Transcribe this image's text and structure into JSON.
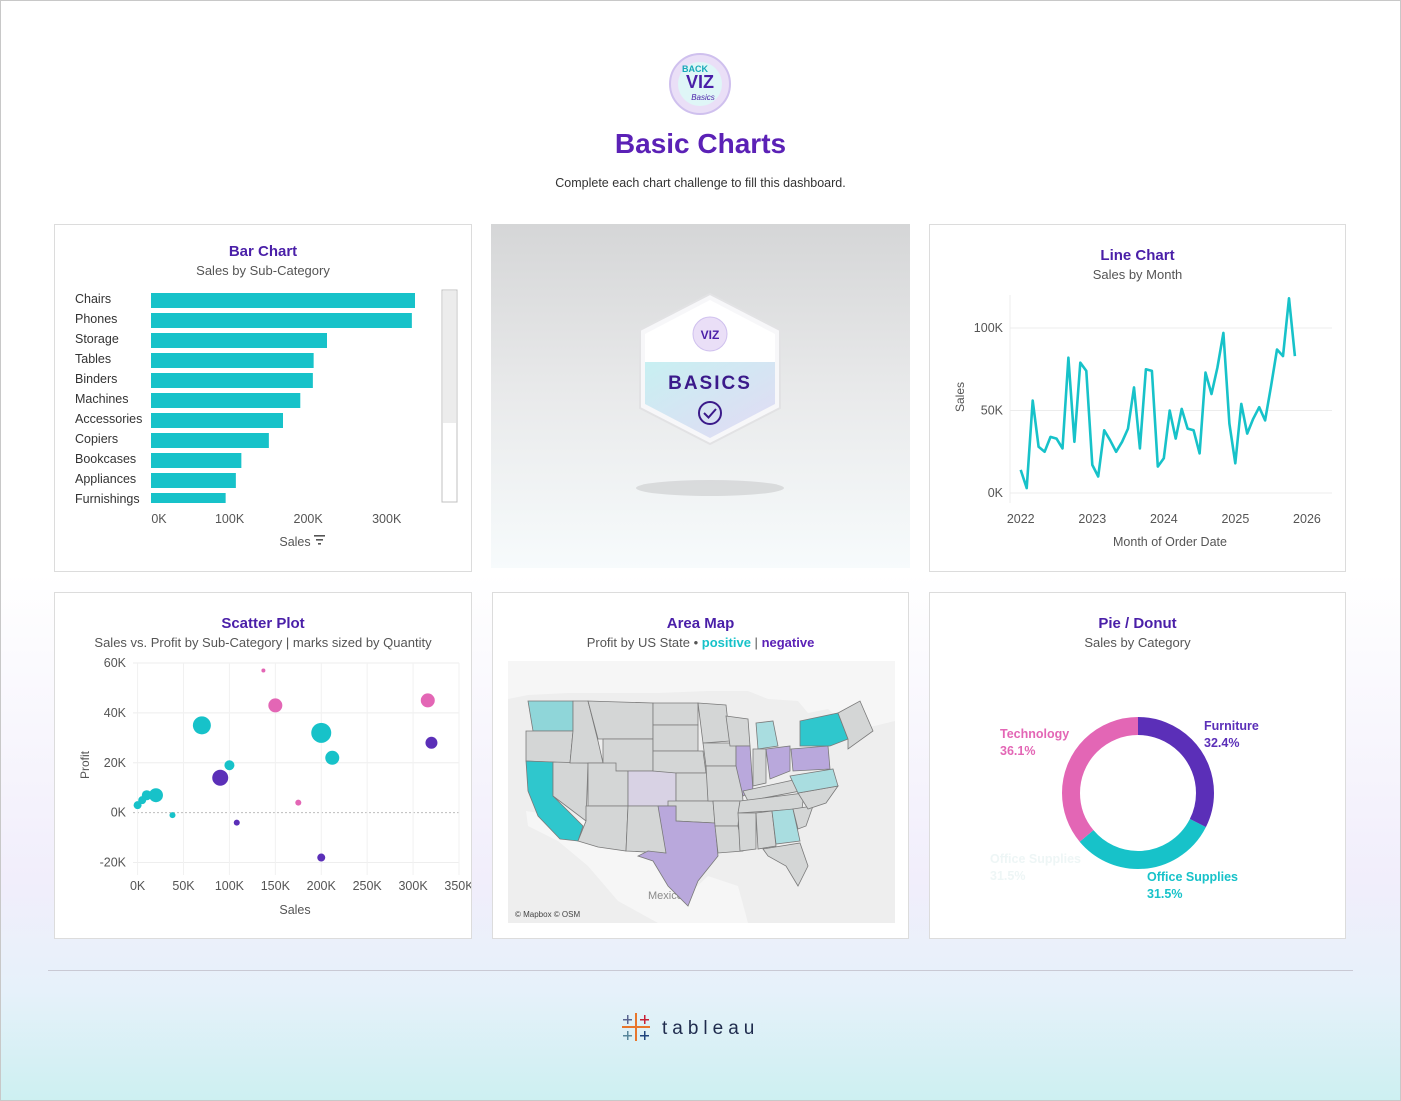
{
  "header": {
    "title": "Basic Charts",
    "subtitle": "Complete each chart challenge to fill this dashboard.",
    "logo_text": [
      "BACK",
      "VIZ",
      "Basics"
    ]
  },
  "badge": {
    "label": "BASICS"
  },
  "bar_card": {
    "title": "Bar Chart",
    "subtitle": "Sales by Sub-Category",
    "axis_label": "Sales"
  },
  "line_card": {
    "title": "Line Chart",
    "subtitle": "Sales by Month"
  },
  "scatter_card": {
    "title": "Scatter Plot",
    "subtitle": "Sales vs. Profit by Sub-Category | marks sized by Quantity"
  },
  "map_card": {
    "title": "Area Map",
    "subtitle_prefix": "Profit by US State •",
    "positive": "positive",
    "separator": "|",
    "negative": "negative",
    "label_mexico": "Mexico",
    "attribution": "© Mapbox © OSM",
    "colors": {
      "positive": "#17c2c9",
      "negative": "#b9a8dc",
      "neutral": "#d4d6d6"
    }
  },
  "pie_card": {
    "title": "Pie / Donut",
    "subtitle": "Sales by Category"
  },
  "footer": {
    "brand": "tableau"
  },
  "chart_data": [
    {
      "id": "bar",
      "type": "bar",
      "orientation": "horizontal",
      "title": "Bar Chart",
      "subtitle": "Sales by Sub-Category",
      "xlabel": "Sales",
      "categories": [
        "Chairs",
        "Phones",
        "Storage",
        "Tables",
        "Binders",
        "Machines",
        "Accessories",
        "Copiers",
        "Bookcases",
        "Appliances",
        "Furnishings"
      ],
      "values": [
        336000,
        332000,
        224000,
        207000,
        206000,
        190000,
        168000,
        150000,
        115000,
        108000,
        95000
      ],
      "xlim": [
        0,
        350000
      ],
      "xticks": [
        "0K",
        "100K",
        "200K",
        "300K"
      ],
      "color": "#17c2c9"
    },
    {
      "id": "line",
      "type": "line",
      "title": "Line Chart",
      "subtitle": "Sales by Month",
      "xlabel": "Month of Order Date",
      "ylabel": "Sales",
      "x_start": 2022.0,
      "x_step": 0.0833,
      "values": [
        14000,
        3000,
        56000,
        28000,
        25000,
        34000,
        33000,
        27000,
        82000,
        31000,
        79000,
        74000,
        17000,
        10000,
        38000,
        32000,
        25000,
        31000,
        39000,
        64000,
        27000,
        75000,
        74000,
        16000,
        21000,
        50000,
        33000,
        51000,
        39000,
        38000,
        24000,
        73000,
        60000,
        76000,
        97000,
        42000,
        18000,
        54000,
        36000,
        45000,
        52000,
        44000,
        65000,
        87000,
        83000,
        118000,
        83000
      ],
      "xticks": [
        "2022",
        "2023",
        "2024",
        "2025",
        "2026"
      ],
      "ylim": [
        0,
        120000
      ],
      "yticks": [
        "0K",
        "50K",
        "100K"
      ],
      "color": "#17c2c9"
    },
    {
      "id": "scatter",
      "type": "scatter",
      "title": "Scatter Plot",
      "subtitle": "Sales vs. Profit by Sub-Category | marks sized by Quantity",
      "xlabel": "Sales",
      "ylabel": "Profit",
      "xlim": [
        -5000,
        350000
      ],
      "ylim": [
        -25000,
        60000
      ],
      "xticks": [
        "0K",
        "50K",
        "100K",
        "150K",
        "200K",
        "250K",
        "300K",
        "350K"
      ],
      "yticks": [
        "-20K",
        "0K",
        "20K",
        "40K",
        "60K"
      ],
      "points": [
        {
          "x": 70000,
          "y": 35000,
          "size": 9,
          "color": "#17c2c9"
        },
        {
          "x": 200000,
          "y": 32000,
          "size": 10,
          "color": "#17c2c9"
        },
        {
          "x": 212000,
          "y": 22000,
          "size": 7,
          "color": "#17c2c9"
        },
        {
          "x": 20000,
          "y": 7000,
          "size": 7,
          "color": "#17c2c9"
        },
        {
          "x": 10000,
          "y": 7000,
          "size": 5,
          "color": "#17c2c9"
        },
        {
          "x": 5000,
          "y": 5000,
          "size": 4,
          "color": "#17c2c9"
        },
        {
          "x": 0,
          "y": 3000,
          "size": 4,
          "color": "#17c2c9"
        },
        {
          "x": 100000,
          "y": 19000,
          "size": 5,
          "color": "#17c2c9"
        },
        {
          "x": 38000,
          "y": -1000,
          "size": 3,
          "color": "#17c2c9"
        },
        {
          "x": 90000,
          "y": 14000,
          "size": 8,
          "color": "#5b2fb8"
        },
        {
          "x": 320000,
          "y": 28000,
          "size": 6,
          "color": "#5b2fb8"
        },
        {
          "x": 108000,
          "y": -4000,
          "size": 3,
          "color": "#5b2fb8"
        },
        {
          "x": 200000,
          "y": -18000,
          "size": 4,
          "color": "#5b2fb8"
        },
        {
          "x": 150000,
          "y": 43000,
          "size": 7,
          "color": "#e366b5"
        },
        {
          "x": 316000,
          "y": 45000,
          "size": 7,
          "color": "#e366b5"
        },
        {
          "x": 137000,
          "y": 57000,
          "size": 2,
          "color": "#e366b5"
        },
        {
          "x": 175000,
          "y": 4000,
          "size": 3,
          "color": "#e366b5"
        }
      ]
    },
    {
      "id": "donut",
      "type": "pie",
      "title": "Pie / Donut",
      "subtitle": "Sales by Category",
      "slices": [
        {
          "label": "Furniture",
          "pct": "32.4%",
          "value": 32.4,
          "color": "#5b2fb8"
        },
        {
          "label": "Office Supplies",
          "pct": "31.5%",
          "value": 31.5,
          "color": "#17c2c9"
        },
        {
          "label": "Technology",
          "pct": "36.1%",
          "value": 36.1,
          "color": "#e366b5"
        }
      ],
      "faded_label": "Office Supplies",
      "faded_pct": "31.5%"
    }
  ]
}
